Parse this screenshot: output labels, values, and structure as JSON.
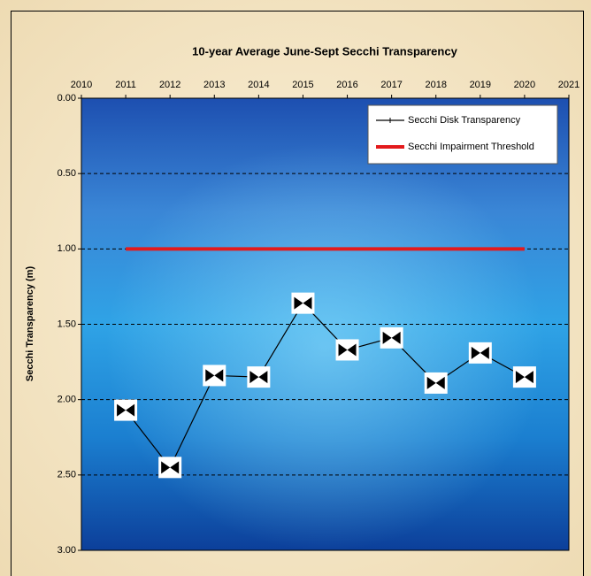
{
  "chart_data": {
    "type": "line",
    "title": "10-year Average June-Sept Secchi Transparency",
    "y_label": "Secchi Transparency (m)",
    "x_axis_position": "top",
    "y_inverted": true,
    "grid": true,
    "legend": "upper right",
    "xlim": [
      2010,
      2021
    ],
    "xticks": [
      2010,
      2011,
      2012,
      2013,
      2014,
      2015,
      2016,
      2017,
      2018,
      2019,
      2020,
      2021
    ],
    "ylim": [
      0,
      3
    ],
    "yticks": [
      {
        "value": 0,
        "label": "0.00"
      },
      {
        "value": 0.5,
        "label": "0.50"
      },
      {
        "value": 1,
        "label": "1.00"
      },
      {
        "value": 1.5,
        "label": "1.50"
      },
      {
        "value": 2,
        "label": "2.00"
      },
      {
        "value": 2.5,
        "label": "2.50"
      },
      {
        "value": 3,
        "label": "3.00"
      }
    ],
    "series": [
      {
        "name": "Secchi Disk Transparency",
        "color": "#000000",
        "markers": true,
        "x": [
          2011,
          2012,
          2013,
          2014,
          2015,
          2016,
          2017,
          2018,
          2019,
          2020
        ],
        "values": [
          2.07,
          2.45,
          1.84,
          1.85,
          1.36,
          1.67,
          1.59,
          1.89,
          1.69,
          1.85
        ]
      },
      {
        "name": "Secchi Impairment Threshold",
        "color": "#e31a1c",
        "markers": false,
        "x": [
          2011,
          2020
        ],
        "values": [
          1,
          1
        ]
      }
    ]
  }
}
